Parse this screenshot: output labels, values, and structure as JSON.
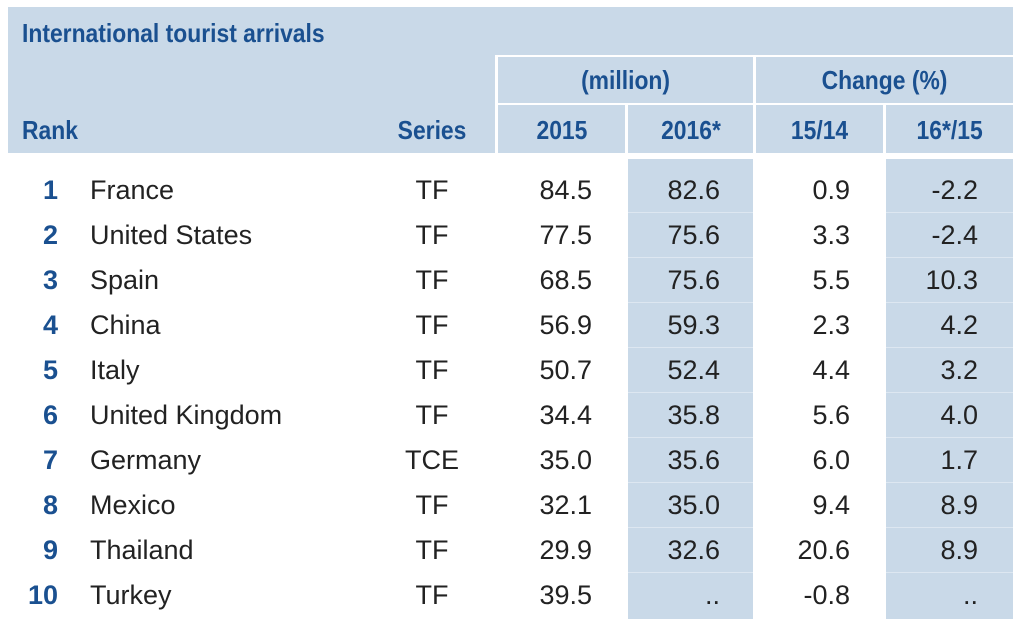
{
  "title": "International tourist arrivals",
  "headers": {
    "rank": "Rank",
    "series": "Series",
    "group_million": "(million)",
    "group_change": "Change (%)",
    "y2015": "2015",
    "y2016": "2016*",
    "c1514": "15/14",
    "c1615": "16*/15"
  },
  "colors": {
    "header_bg": "#c9d9e8",
    "accent_text": "#1a5090",
    "body_text": "#222222"
  },
  "rows": [
    {
      "rank": "1",
      "country": "France",
      "series": "TF",
      "v2015": "84.5",
      "v2016": "82.6",
      "c1514": "0.9",
      "c1615": "-2.2"
    },
    {
      "rank": "2",
      "country": "United States",
      "series": "TF",
      "v2015": "77.5",
      "v2016": "75.6",
      "c1514": "3.3",
      "c1615": "-2.4"
    },
    {
      "rank": "3",
      "country": "Spain",
      "series": "TF",
      "v2015": "68.5",
      "v2016": "75.6",
      "c1514": "5.5",
      "c1615": "10.3"
    },
    {
      "rank": "4",
      "country": "China",
      "series": "TF",
      "v2015": "56.9",
      "v2016": "59.3",
      "c1514": "2.3",
      "c1615": "4.2"
    },
    {
      "rank": "5",
      "country": "Italy",
      "series": "TF",
      "v2015": "50.7",
      "v2016": "52.4",
      "c1514": "4.4",
      "c1615": "3.2"
    },
    {
      "rank": "6",
      "country": "United Kingdom",
      "series": "TF",
      "v2015": "34.4",
      "v2016": "35.8",
      "c1514": "5.6",
      "c1615": "4.0"
    },
    {
      "rank": "7",
      "country": "Germany",
      "series": "TCE",
      "v2015": "35.0",
      "v2016": "35.6",
      "c1514": "6.0",
      "c1615": "1.7"
    },
    {
      "rank": "8",
      "country": "Mexico",
      "series": "TF",
      "v2015": "32.1",
      "v2016": "35.0",
      "c1514": "9.4",
      "c1615": "8.9"
    },
    {
      "rank": "9",
      "country": "Thailand",
      "series": "TF",
      "v2015": "29.9",
      "v2016": "32.6",
      "c1514": "20.6",
      "c1615": "8.9"
    },
    {
      "rank": "10",
      "country": "Turkey",
      "series": "TF",
      "v2015": "39.5",
      "v2016": "..",
      "c1514": "-0.8",
      "c1615": ".."
    }
  ]
}
